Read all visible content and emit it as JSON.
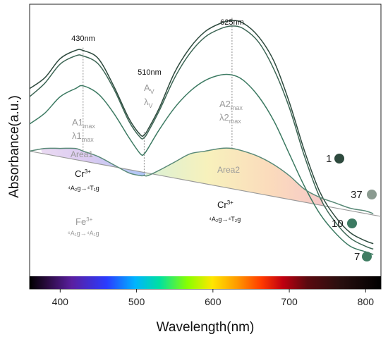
{
  "chart_data": {
    "type": "line",
    "xlabel": "Wavelength(nm)",
    "ylabel": "Absorbance(a.u.)",
    "xlim": [
      360,
      820
    ],
    "ylim": [
      0,
      1
    ],
    "xticks": [
      400,
      500,
      600,
      700,
      800
    ],
    "series": [
      {
        "name": "1",
        "color": "#2e4a3e",
        "x": [
          360,
          380,
          400,
          420,
          430,
          450,
          470,
          490,
          505,
          510,
          515,
          530,
          550,
          570,
          590,
          610,
          625,
          640,
          660,
          680,
          700,
          720,
          740,
          760,
          780,
          800,
          810
        ],
        "y": [
          0.69,
          0.73,
          0.8,
          0.83,
          0.83,
          0.8,
          0.7,
          0.58,
          0.52,
          0.52,
          0.54,
          0.62,
          0.75,
          0.84,
          0.9,
          0.93,
          0.94,
          0.93,
          0.88,
          0.79,
          0.64,
          0.46,
          0.31,
          0.22,
          0.16,
          0.13,
          0.12
        ]
      },
      {
        "name": "37",
        "color": "#3d6655",
        "x": [
          360,
          380,
          400,
          420,
          430,
          450,
          470,
          490,
          505,
          510,
          515,
          530,
          550,
          570,
          590,
          610,
          625,
          640,
          660,
          680,
          700,
          720,
          740,
          760,
          780,
          800,
          810
        ],
        "y": [
          0.66,
          0.71,
          0.78,
          0.81,
          0.81,
          0.78,
          0.69,
          0.57,
          0.51,
          0.51,
          0.53,
          0.61,
          0.73,
          0.82,
          0.88,
          0.91,
          0.92,
          0.91,
          0.86,
          0.76,
          0.62,
          0.44,
          0.29,
          0.2,
          0.14,
          0.11,
          0.1
        ]
      },
      {
        "name": "10",
        "color": "#3c7a62",
        "x": [
          360,
          380,
          400,
          420,
          430,
          450,
          470,
          490,
          505,
          510,
          515,
          530,
          550,
          570,
          590,
          610,
          625,
          640,
          660,
          680,
          700,
          720,
          740,
          760,
          780,
          800,
          810
        ],
        "y": [
          0.56,
          0.6,
          0.66,
          0.69,
          0.7,
          0.67,
          0.6,
          0.51,
          0.45,
          0.45,
          0.47,
          0.54,
          0.62,
          0.68,
          0.72,
          0.74,
          0.74,
          0.72,
          0.66,
          0.57,
          0.45,
          0.33,
          0.23,
          0.16,
          0.11,
          0.09,
          0.08
        ]
      },
      {
        "name": "7",
        "color": "#5a8a78",
        "x": [
          360,
          380,
          400,
          420,
          430,
          450,
          470,
          490,
          505,
          510,
          515,
          530,
          550,
          570,
          590,
          610,
          625,
          640,
          660,
          680,
          700,
          720,
          740,
          760,
          780,
          800,
          810
        ],
        "y": [
          0.46,
          0.47,
          0.47,
          0.47,
          0.46,
          0.44,
          0.41,
          0.38,
          0.37,
          0.37,
          0.37,
          0.39,
          0.42,
          0.45,
          0.46,
          0.47,
          0.47,
          0.46,
          0.44,
          0.41,
          0.37,
          0.32,
          0.29,
          0.27,
          0.25,
          0.24,
          0.23
        ]
      }
    ],
    "peak_labels": [
      {
        "text": "430nm",
        "x": 430
      },
      {
        "text": "510nm",
        "x": 510
      },
      {
        "text": "625nm",
        "x": 625
      }
    ],
    "sample_markers": [
      {
        "label": "1",
        "color": "#2e4a3e"
      },
      {
        "label": "37",
        "color": "#8a9a90"
      },
      {
        "label": "10",
        "color": "#3c7a62"
      },
      {
        "label": "7",
        "color": "#3f7d62"
      }
    ],
    "annotations": {
      "area1": "Area1",
      "area2": "Area2",
      "a1": "A1",
      "a1_sub": "max",
      "l1": "λ1",
      "l1_sub": "max",
      "av": "A",
      "av_sub": "V",
      "lv": "λ",
      "lv_sub": "V",
      "a2": "A2",
      "a2_sub": "max",
      "l2": "λ2",
      "l2_sub": "max",
      "cr_left": "Cr",
      "cr_left_sup": "3+",
      "cr_left_trans": "⁴A₂g→⁴T₁g",
      "cr_right": "Cr",
      "cr_right_sup": "3+",
      "cr_right_trans": "⁴A₂g→⁴T₂g",
      "fe": "Fe",
      "fe_sup": "3+",
      "fe_trans": "⁶A₁g→⁴A₁g"
    }
  }
}
